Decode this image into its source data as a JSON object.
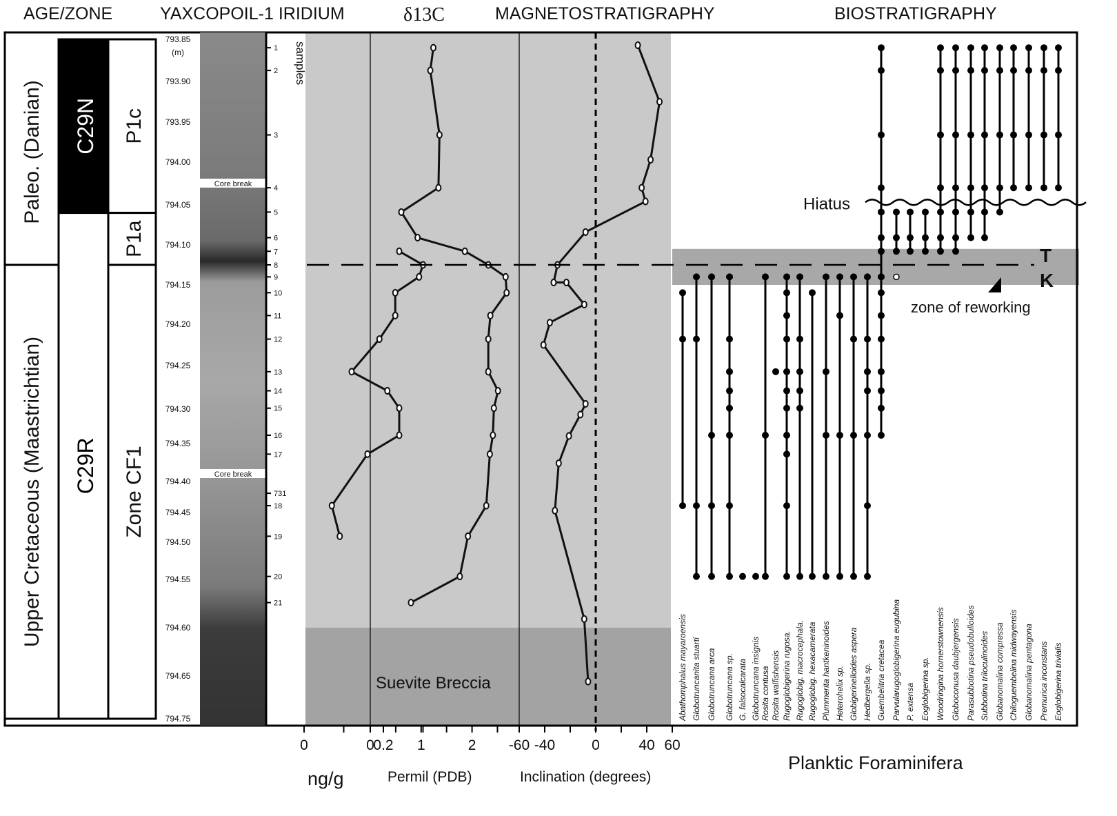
{
  "headers": {
    "age_zone": "AGE/ZONE",
    "iridium": "YAXCOPOIL-1 IRIDIUM",
    "d13c": "δ13C",
    "magneto": "MAGNETOSTRATIGRAPHY",
    "bio": "BIOSTRATIGRAPHY"
  },
  "age": [
    {
      "label": "Paleo. (Danian)",
      "from": 793.85,
      "to": 794.125
    },
    {
      "label": "Upper Cretaceous (Maastrichtian)",
      "from": 794.125,
      "to": 794.75
    }
  ],
  "chron": [
    {
      "label": "C29N",
      "from": 793.85,
      "to": 794.06,
      "fill": "#000000",
      "text": "#ffffff"
    },
    {
      "label": "C29R",
      "from": 794.06,
      "to": 794.75,
      "fill": "#ffffff",
      "text": "#000000"
    }
  ],
  "zones": [
    {
      "label": "P1c",
      "from": 793.85,
      "to": 794.06
    },
    {
      "label": "P1a",
      "from": 794.06,
      "to": 794.125
    },
    {
      "label": "Zone CF1",
      "from": 794.125,
      "to": 794.75
    }
  ],
  "depth_unit": "(m)",
  "depth_ticks": [
    "793.85",
    "793.90",
    "793.95",
    "794.00",
    "794.05",
    "794.10",
    "794.15",
    "794.20",
    "794.25",
    "794.30",
    "794.35",
    "794.40",
    "794.45",
    "794.50",
    "794.55",
    "794.60",
    "794.65",
    "794.75"
  ],
  "samples_label": "samples",
  "core_break_label": "Core break",
  "core_breaks": [
    794.025,
    794.39
  ],
  "samples": [
    {
      "id": "1",
      "depth": 793.86
    },
    {
      "id": "2",
      "depth": 793.887
    },
    {
      "id": "3",
      "depth": 793.966
    },
    {
      "id": "4",
      "depth": 794.03
    },
    {
      "id": "5",
      "depth": 794.059
    },
    {
      "id": "6",
      "depth": 794.091
    },
    {
      "id": "7",
      "depth": 794.108
    },
    {
      "id": "8",
      "depth": 794.125
    },
    {
      "id": "9",
      "depth": 794.14
    },
    {
      "id": "10",
      "depth": 794.16
    },
    {
      "id": "11",
      "depth": 794.189
    },
    {
      "id": "12",
      "depth": 794.218
    },
    {
      "id": "13",
      "depth": 794.257
    },
    {
      "id": "14",
      "depth": 794.279
    },
    {
      "id": "15",
      "depth": 794.299
    },
    {
      "id": "16",
      "depth": 794.338
    },
    {
      "id": "17",
      "depth": 794.364
    },
    {
      "id": "731",
      "depth": 794.419
    },
    {
      "id": "18",
      "depth": 794.439
    },
    {
      "id": "19",
      "depth": 794.49
    },
    {
      "id": "20",
      "depth": 794.546
    },
    {
      "id": "21",
      "depth": 794.574
    }
  ],
  "chart_data": [
    {
      "type": "line",
      "name": "iridium",
      "xlabel": "ng/g",
      "xlim": [
        0,
        0.4
      ],
      "ticks": [
        "0",
        "0.2"
      ],
      "minor_ticks": [
        0.1,
        0.3
      ],
      "points": [
        [
          "7",
          0.24
        ],
        [
          "8",
          0.3
        ],
        [
          "9",
          0.29
        ],
        [
          "10",
          0.23
        ],
        [
          "11",
          0.23
        ],
        [
          "12",
          0.19
        ],
        [
          "13",
          0.12
        ],
        [
          "14",
          0.21
        ],
        [
          "15",
          0.24
        ],
        [
          "16",
          0.24
        ],
        [
          "17",
          0.16
        ],
        [
          "18",
          0.07
        ],
        [
          "19",
          0.09
        ]
      ]
    },
    {
      "type": "line",
      "name": "d13c",
      "xlabel": "Permil (PDB)",
      "xlim": [
        0,
        2.9
      ],
      "ticks": [
        "0",
        "1",
        "2"
      ],
      "minor_ticks": [
        0.5,
        1.5,
        2.5
      ],
      "points": [
        [
          "1",
          1.24
        ],
        [
          "2",
          1.18
        ],
        [
          "3",
          1.36
        ],
        [
          "4",
          1.34
        ],
        [
          "5",
          0.61
        ],
        [
          "6",
          0.93
        ],
        [
          "7",
          1.86
        ],
        [
          "8",
          2.32
        ],
        [
          "9",
          2.66
        ],
        [
          "10",
          2.68
        ],
        [
          "11",
          2.36
        ],
        [
          "12",
          2.32
        ],
        [
          "13",
          2.32
        ],
        [
          "14",
          2.51
        ],
        [
          "15",
          2.43
        ],
        [
          "16",
          2.41
        ],
        [
          "17",
          2.35
        ],
        [
          "18",
          2.28
        ],
        [
          "19",
          1.92
        ],
        [
          "20",
          1.76
        ],
        [
          "21",
          0.8
        ]
      ]
    },
    {
      "type": "line",
      "name": "inclination",
      "xlabel": "Inclination (degrees)",
      "xlim": [
        -60,
        60
      ],
      "ticks": [
        "-60",
        "-40",
        "0",
        "40",
        "60"
      ],
      "minor_ticks": [
        -20,
        20
      ],
      "points": [
        [
          793.857,
          33
        ],
        [
          793.925,
          50
        ],
        [
          793.997,
          43
        ],
        [
          794.03,
          36
        ],
        [
          794.046,
          39
        ],
        [
          794.084,
          -8
        ],
        [
          794.125,
          -30
        ],
        [
          794.147,
          -33
        ],
        [
          794.147,
          -23
        ],
        [
          794.175,
          -9
        ],
        [
          794.198,
          -36
        ],
        [
          794.225,
          -41
        ],
        [
          794.294,
          -8
        ],
        [
          794.308,
          -12
        ],
        [
          794.339,
          -21
        ],
        [
          794.376,
          -29
        ],
        [
          794.447,
          -32
        ],
        [
          794.591,
          -9
        ],
        [
          794.663,
          -6
        ]
      ]
    }
  ],
  "suevite": {
    "label": "Suevite Breccia",
    "from": 794.6
  },
  "kt": {
    "depth": 794.125,
    "band_from": 794.105,
    "band_to": 794.15,
    "t": "T",
    "k": "K",
    "reworking": "zone of reworking"
  },
  "hiatus": {
    "label": "Hiatus",
    "depth": 794.047
  },
  "bio_xlabel": "Planktic Foraminifera",
  "colors": {
    "panel": "#c9c9c9",
    "suevite": "#a3a3a3",
    "kt_band": "#a8a8a8"
  },
  "species": [
    {
      "name": "Abathomphalus mayaroensis",
      "samples": [
        "10",
        "12",
        "18"
      ]
    },
    {
      "name": "Globotruncanita stuarti",
      "samples": [
        "9",
        "12",
        "18",
        "20"
      ]
    },
    {
      "name": "Globotruncana arca",
      "samples": [
        "9",
        "16",
        "18",
        "20"
      ]
    },
    {
      "name": "Globotruncana sp.",
      "samples": [
        "9",
        "12",
        "13",
        "14",
        "15",
        "16",
        "18",
        "20"
      ]
    },
    {
      "name": "G. falsocalcarata",
      "samples": [
        "20"
      ]
    },
    {
      "name": "Globotruncana insignis",
      "samples": [
        "20"
      ]
    },
    {
      "name": "Rosita contusa",
      "samples": [
        "9",
        "16",
        "20"
      ]
    },
    {
      "name": "Rosita walfishensis",
      "samples": [
        "13"
      ]
    },
    {
      "name": "Rugoglobigerina rugosa.",
      "samples": [
        "9",
        "10",
        "11",
        "12",
        "13",
        "14",
        "15",
        "16",
        "17",
        "18",
        "20"
      ]
    },
    {
      "name": "Rugoglobig. macrocephala.",
      "samples": [
        "9",
        "12",
        "13",
        "14",
        "15",
        "20"
      ]
    },
    {
      "name": "Rugoglobig. hexacamerata",
      "samples": [
        "10",
        "20"
      ]
    },
    {
      "name": "Plummerita hantkeninoides",
      "samples": [
        "9",
        "13",
        "16",
        "20"
      ]
    },
    {
      "name": "Heterohelix sp.",
      "samples": [
        "9",
        "11",
        "16",
        "20"
      ]
    },
    {
      "name": "Globigerinelloides aspera",
      "samples": [
        "9",
        "12",
        "16",
        "20"
      ]
    },
    {
      "name": "Hedbergella sp.",
      "samples": [
        "9",
        "12",
        "13",
        "14",
        "16",
        "18",
        "20"
      ]
    },
    {
      "name": "Guembelitria cretacea",
      "samples": [
        "1",
        "2",
        "3",
        "4",
        "5",
        "6",
        "7",
        "9",
        "10",
        "11",
        "12",
        "13",
        "14",
        "15",
        "16"
      ]
    },
    {
      "name": "Parvularugoglobigerina  eugubina",
      "samples": [
        "5",
        "6",
        "7"
      ],
      "reworked": [
        "9"
      ]
    },
    {
      "name": "P. extensa",
      "samples": [
        "5",
        "6",
        "7"
      ]
    },
    {
      "name": "Eoglobigerina sp.",
      "samples": [
        "5",
        "6",
        "7"
      ]
    },
    {
      "name": "Woodringina hornerstownensis",
      "samples": [
        "1",
        "2",
        "3",
        "4",
        "5",
        "6",
        "7"
      ]
    },
    {
      "name": "Globoconusa daubjergensis",
      "samples": [
        "1",
        "2",
        "3",
        "4",
        "5",
        "6",
        "7"
      ]
    },
    {
      "name": "Parasubbotina pseudobulloides",
      "samples": [
        "1",
        "2",
        "3",
        "4",
        "5",
        "6"
      ]
    },
    {
      "name": "Subbotina triloculinoides",
      "samples": [
        "1",
        "2",
        "3",
        "4",
        "5",
        "6"
      ]
    },
    {
      "name": "Globanomalina compressa",
      "samples": [
        "1",
        "2",
        "3",
        "4",
        "5"
      ]
    },
    {
      "name": "Chiloguembelina midwayensis",
      "samples": [
        "1",
        "2",
        "3",
        "4"
      ]
    },
    {
      "name": "Globanomalina pentagona",
      "samples": [
        "1",
        "2",
        "3",
        "4"
      ]
    },
    {
      "name": "Premurica inconstans",
      "samples": [
        "1",
        "2",
        "3",
        "4"
      ]
    },
    {
      "name": "Eoglobigerina trivialis",
      "samples": [
        "1",
        "2",
        "3",
        "4"
      ]
    }
  ]
}
